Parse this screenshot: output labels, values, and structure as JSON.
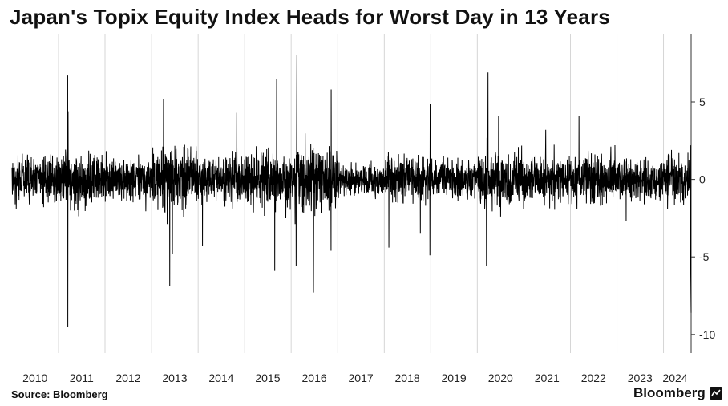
{
  "chart_data": {
    "type": "line",
    "title": "Japan's Topix Equity Index Heads for Worst Day in 13 Years",
    "xlabel": "",
    "ylabel": "",
    "x_range": [
      "2010-01-01",
      "2024-08-05"
    ],
    "ylim": [
      -11.2,
      9.4
    ],
    "yticks": [
      5,
      0,
      -5,
      -10
    ],
    "ytick_labels": [
      "5",
      "0",
      "-5",
      "-10"
    ],
    "xtick_labels": [
      "2010",
      "2011",
      "2012",
      "2013",
      "2014",
      "2015",
      "2016",
      "2017",
      "2018",
      "2019",
      "2020",
      "2021",
      "2022",
      "2023",
      "2024"
    ],
    "grid": "vertical",
    "y_axis_side": "right",
    "series": [
      {
        "color": "#000000",
        "notable_points": [
          {
            "x": "2011-03-14",
            "y": 6.7
          },
          {
            "x": "2011-03-15",
            "y": -9.5
          },
          {
            "x": "2011-03-17",
            "y": 4.4
          },
          {
            "x": "2013-05-23",
            "y": -6.9
          },
          {
            "x": "2013-04-04",
            "y": 5.2
          },
          {
            "x": "2013-06-13",
            "y": -4.8
          },
          {
            "x": "2014-02-04",
            "y": -4.3
          },
          {
            "x": "2014-10-31",
            "y": 4.3
          },
          {
            "x": "2015-08-25",
            "y": -5.9
          },
          {
            "x": "2015-09-09",
            "y": 6.5
          },
          {
            "x": "2016-02-09",
            "y": -5.6
          },
          {
            "x": "2016-02-15",
            "y": 8.0
          },
          {
            "x": "2016-06-24",
            "y": -7.3
          },
          {
            "x": "2016-11-10",
            "y": 5.8
          },
          {
            "x": "2016-11-09",
            "y": -4.6
          },
          {
            "x": "2018-02-06",
            "y": -4.4
          },
          {
            "x": "2018-10-11",
            "y": -3.5
          },
          {
            "x": "2018-12-25",
            "y": -4.9
          },
          {
            "x": "2018-12-27",
            "y": 4.9
          },
          {
            "x": "2020-03-13",
            "y": -5.6
          },
          {
            "x": "2020-03-25",
            "y": 6.9
          },
          {
            "x": "2020-03-24",
            "y": 4.0
          },
          {
            "x": "2020-06-16",
            "y": 4.1
          },
          {
            "x": "2021-06-21",
            "y": 3.2
          },
          {
            "x": "2022-03-09",
            "y": 4.1
          },
          {
            "x": "2023-03-14",
            "y": -2.7
          },
          {
            "x": "2024-03-04",
            "y": 1.9
          },
          {
            "x": "2024-07-31",
            "y": 2.2
          },
          {
            "x": "2024-08-02",
            "y": -6.1
          },
          {
            "x": "2024-08-05",
            "y": -8.6
          }
        ]
      }
    ]
  },
  "footer": {
    "source": "Source: Bloomberg",
    "brand": "Bloomberg"
  }
}
